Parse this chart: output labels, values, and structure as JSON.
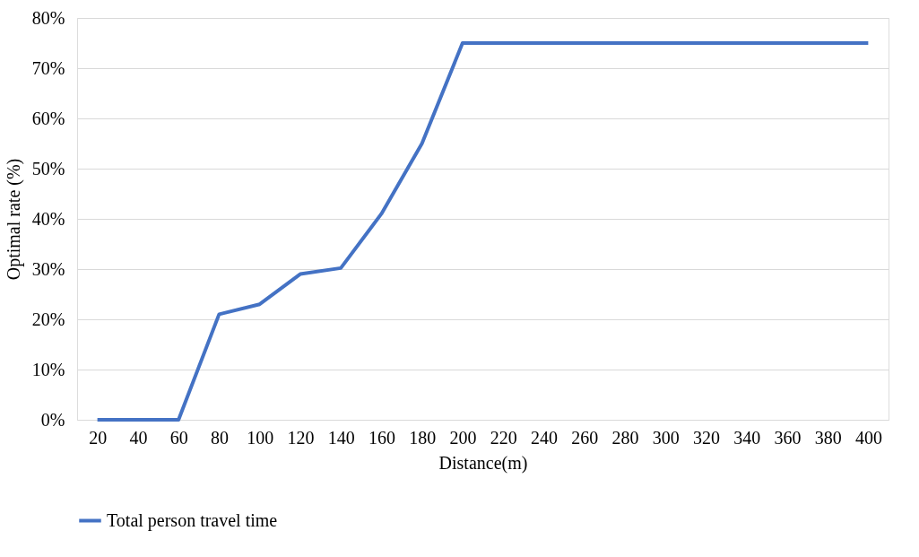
{
  "chart_data": {
    "type": "line",
    "xlabel": "Distance(m)",
    "ylabel": "Optimal rate (%)",
    "categories": [
      "20",
      "40",
      "60",
      "80",
      "100",
      "120",
      "140",
      "160",
      "180",
      "200",
      "220",
      "240",
      "260",
      "280",
      "300",
      "320",
      "340",
      "360",
      "380",
      "400"
    ],
    "series": [
      {
        "name": "Total person travel time",
        "color": "#4472c4",
        "values": [
          0,
          0,
          0,
          21,
          23,
          29,
          30.2,
          41,
          55,
          75,
          75,
          75,
          75,
          75,
          75,
          75,
          75,
          75,
          75,
          75
        ]
      }
    ],
    "ylim": [
      0,
      80
    ],
    "yticks": [
      {
        "value": 0,
        "label": "0%"
      },
      {
        "value": 10,
        "label": "10%"
      },
      {
        "value": 20,
        "label": "20%"
      },
      {
        "value": 30,
        "label": "30%"
      },
      {
        "value": 40,
        "label": "40%"
      },
      {
        "value": 50,
        "label": "50%"
      },
      {
        "value": 60,
        "label": "60%"
      },
      {
        "value": 70,
        "label": "70%"
      },
      {
        "value": 80,
        "label": "80%"
      }
    ],
    "grid": "y",
    "legend": "bottom",
    "marker": "none",
    "line_style": "solid"
  }
}
